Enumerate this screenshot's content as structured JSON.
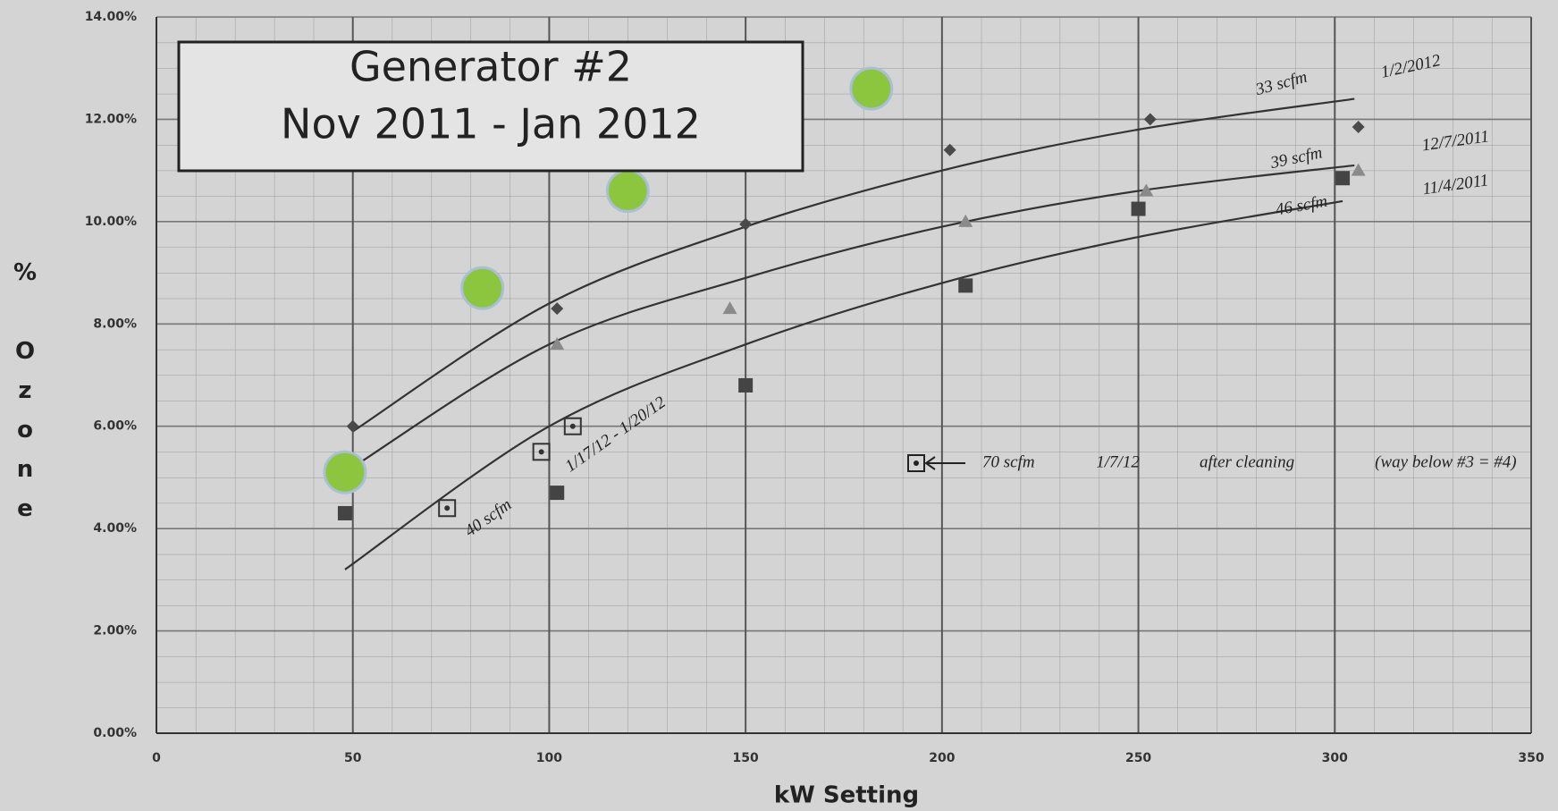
{
  "chart_data": {
    "type": "scatter",
    "title": "Generator #2",
    "subtitle": "Nov 2011 - Jan 2012",
    "xlabel": "kW Setting",
    "ylabel": "% Ozone",
    "xlim": [
      0,
      350
    ],
    "ylim": [
      0,
      14
    ],
    "xticks": [
      0,
      50,
      100,
      150,
      200,
      250,
      300,
      350
    ],
    "yticks": [
      {
        "value": 0,
        "label": "0.00%"
      },
      {
        "value": 2,
        "label": "2.00%"
      },
      {
        "value": 4,
        "label": "4.00%"
      },
      {
        "value": 6,
        "label": "6.00%"
      },
      {
        "value": 8,
        "label": "8.00%"
      },
      {
        "value": 10,
        "label": "10.00%"
      },
      {
        "value": 12,
        "label": "12.00%"
      },
      {
        "value": 14,
        "label": "14.00%"
      }
    ],
    "grid": true,
    "series": [
      {
        "type": "line",
        "color": "#333333",
        "x": [
          50,
          100,
          150,
          200,
          250,
          305
        ],
        "values": [
          5.9,
          8.4,
          9.9,
          11.0,
          11.8,
          12.4
        ]
      },
      {
        "type": "line",
        "color": "#333333",
        "x": [
          50,
          100,
          150,
          200,
          250,
          305
        ],
        "values": [
          5.2,
          7.6,
          8.9,
          9.9,
          10.6,
          11.1
        ]
      },
      {
        "type": "line",
        "color": "#333333",
        "x": [
          48,
          100,
          150,
          200,
          250,
          302
        ],
        "values": [
          3.2,
          6.0,
          7.6,
          8.8,
          9.7,
          10.4
        ]
      },
      {
        "type": "scatter",
        "marker": "diamond",
        "color": "#4a4a4a",
        "x": [
          50,
          102,
          150,
          202,
          253,
          306
        ],
        "values": [
          6.0,
          8.3,
          9.95,
          11.4,
          12.0,
          11.85
        ]
      },
      {
        "type": "scatter",
        "marker": "triangle",
        "color": "#8a8a8a",
        "x": [
          102,
          146,
          206,
          252,
          306
        ],
        "values": [
          7.6,
          8.3,
          10.0,
          10.6,
          11.0
        ]
      },
      {
        "type": "scatter",
        "marker": "square",
        "color": "#444444",
        "x": [
          48,
          102,
          150,
          206,
          250,
          302
        ],
        "values": [
          4.3,
          4.7,
          6.8,
          8.75,
          10.25,
          10.85
        ]
      },
      {
        "type": "scatter",
        "marker": "boxdot",
        "color": "#333333",
        "x": [
          74,
          98,
          106
        ],
        "values": [
          4.4,
          5.5,
          6.0
        ]
      },
      {
        "type": "scatter",
        "marker": "circle",
        "color": "#8cc63f",
        "x": [
          48,
          83,
          120,
          182
        ],
        "values": [
          5.1,
          8.7,
          10.6,
          12.6
        ]
      }
    ],
    "annotations": [
      "33 scfm",
      "1/2/2012",
      "39 scfm",
      "12/7/2011",
      "46 scfm",
      "11/4/2011",
      "40 scfm",
      "1/17/12 - 1/20/12",
      "70 scfm",
      "1/7/12",
      "after cleaning",
      "(way below #3 = #4)"
    ]
  }
}
